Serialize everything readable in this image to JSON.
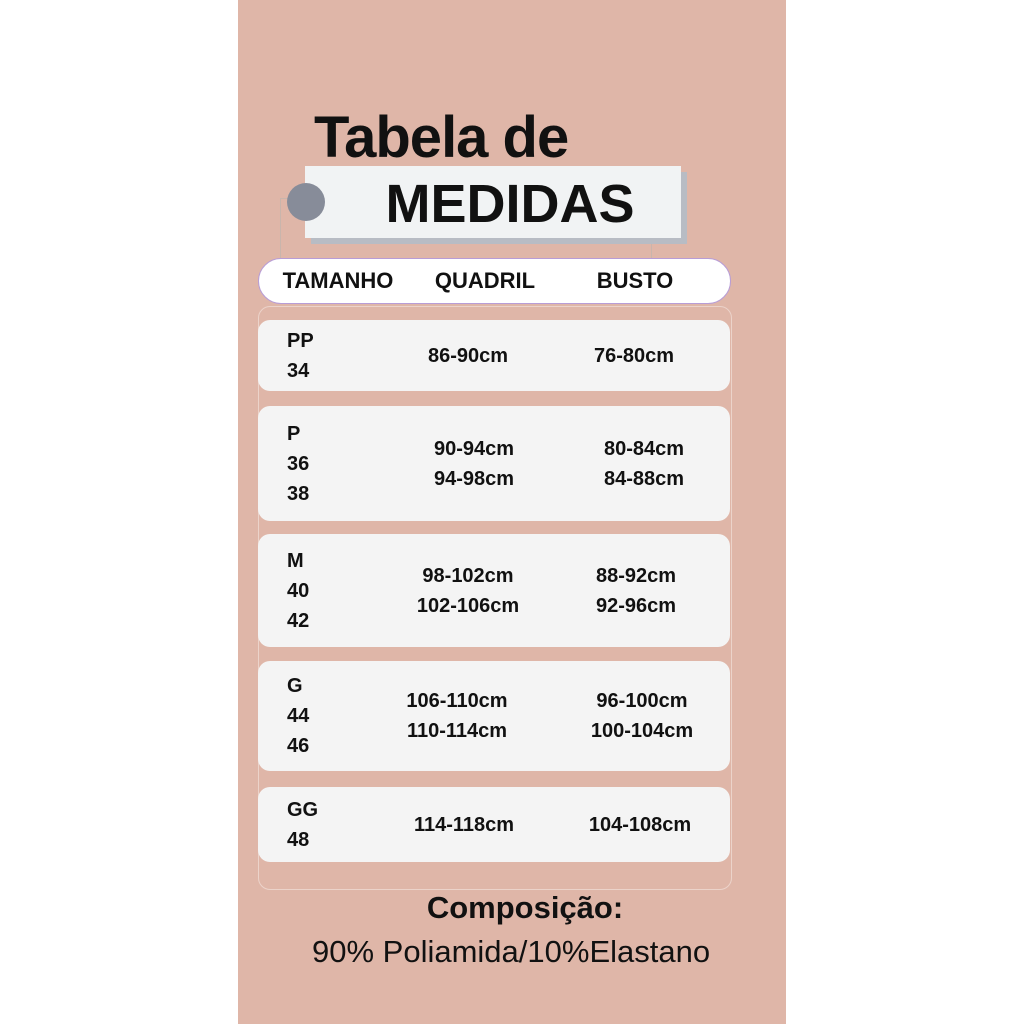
{
  "title": {
    "line1": "Tabela de",
    "line2": "MEDIDAS"
  },
  "colors": {
    "background": "#dfb6a8",
    "card": "#f4f4f4",
    "dot": "#878c99",
    "header_border": "#b89dd6"
  },
  "table": {
    "headers": [
      "TAMANHO",
      "QUADRIL",
      "BUSTO"
    ],
    "rows": [
      {
        "sizes": [
          "PP",
          "34"
        ],
        "quadril": [
          "86-90cm"
        ],
        "busto": [
          "76-80cm"
        ]
      },
      {
        "sizes": [
          "P",
          "36",
          "38"
        ],
        "quadril": [
          "90-94cm",
          "94-98cm"
        ],
        "busto": [
          "80-84cm",
          "84-88cm"
        ]
      },
      {
        "sizes": [
          "M",
          "40",
          "42"
        ],
        "quadril": [
          "98-102cm",
          "102-106cm"
        ],
        "busto": [
          "88-92cm",
          "92-96cm"
        ]
      },
      {
        "sizes": [
          "G",
          "44",
          "46"
        ],
        "quadril": [
          "106-110cm",
          "110-114cm"
        ],
        "busto": [
          "96-100cm",
          "100-104cm"
        ]
      },
      {
        "sizes": [
          "GG",
          "48"
        ],
        "quadril": [
          "114-118cm"
        ],
        "busto": [
          "104-108cm"
        ]
      }
    ]
  },
  "composition": {
    "label": "Composição:",
    "value": "90% Poliamida/10%Elastano"
  }
}
